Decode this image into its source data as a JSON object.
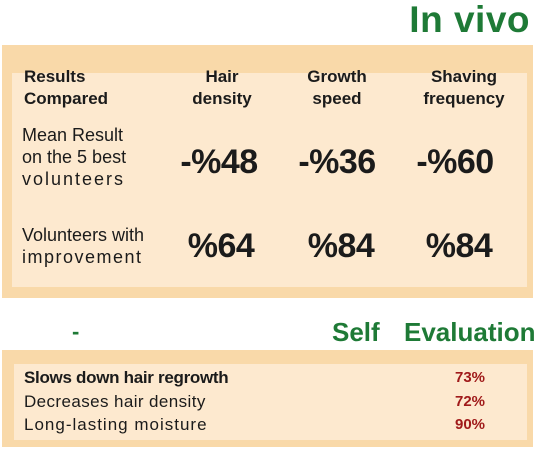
{
  "title": "In vivo",
  "results": {
    "headers": {
      "results_compared": [
        "Results",
        "Compared"
      ],
      "hair_density": [
        "Hair",
        "density"
      ],
      "growth_speed": [
        "Growth",
        "speed"
      ],
      "shaving_frequency": [
        "Shaving",
        "frequency"
      ]
    },
    "rows": [
      {
        "label": [
          "Mean Result",
          "on the 5 best",
          "volunteers"
        ],
        "hair_density": "-%48",
        "growth_speed": "-%36",
        "shaving_frequency": "-%60"
      },
      {
        "label": [
          "Volunteers with",
          "improvement"
        ],
        "hair_density": "%64",
        "growth_speed": "%84",
        "shaving_frequency": "%84"
      }
    ]
  },
  "self_evaluation": {
    "dash": "-",
    "word1": "Self",
    "word2": "Evaluation",
    "items": [
      {
        "label": "Slows down hair regrowth",
        "value": "73%"
      },
      {
        "label": "Decreases hair density",
        "value": "72%"
      },
      {
        "label": "Long-lasting moisture",
        "value": "90%"
      }
    ]
  }
}
